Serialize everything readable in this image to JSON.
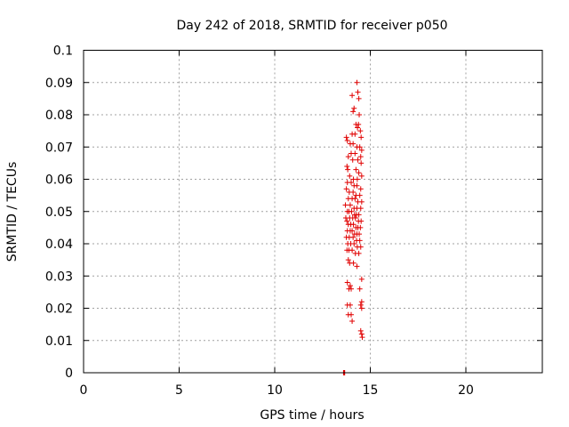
{
  "chart_data": {
    "type": "scatter",
    "title": "Day 242 of 2018, SRMTID for receiver p050",
    "xlabel": "GPS time / hours",
    "ylabel": "SRMTID / TECUs",
    "xlim": [
      0,
      24
    ],
    "ylim": [
      0,
      0.1
    ],
    "xticks": [
      0,
      5,
      10,
      15,
      20
    ],
    "xtick_labels": [
      "0",
      "5",
      "10",
      "15",
      "20"
    ],
    "yticks": [
      0,
      0.01,
      0.02,
      0.03,
      0.04,
      0.05,
      0.06,
      0.07,
      0.08,
      0.09,
      0.1
    ],
    "ytick_labels": [
      "0",
      "0.01",
      "0.02",
      "0.03",
      "0.04",
      "0.05",
      "0.06",
      "0.07",
      "0.08",
      "0.09",
      "0.1"
    ],
    "grid": true,
    "marker": "+",
    "color": "#e00000",
    "series": [
      {
        "name": "SRMTID",
        "x": [
          13.6,
          13.62,
          13.64,
          13.66,
          14.3,
          14.35,
          14.4,
          14.05,
          14.15,
          14.1,
          14.42,
          14.38,
          14.25,
          14.33,
          14.48,
          14.05,
          14.2,
          14.52,
          13.75,
          13.8,
          13.95,
          14.1,
          14.3,
          14.45,
          14.55,
          14.0,
          14.2,
          14.5,
          13.85,
          14.08,
          14.35,
          14.52,
          13.78,
          13.82,
          14.25,
          14.4,
          14.55,
          13.92,
          14.12,
          14.32,
          13.8,
          14.0,
          14.15,
          14.3,
          14.5,
          13.75,
          13.9,
          14.1,
          14.25,
          14.45,
          13.85,
          14.05,
          14.2,
          14.35,
          14.55,
          13.7,
          13.95,
          14.15,
          14.3,
          14.5,
          13.8,
          13.88,
          14.02,
          14.18,
          14.28,
          14.4,
          13.72,
          13.92,
          14.08,
          14.22,
          14.38,
          14.52,
          13.78,
          13.85,
          13.98,
          14.12,
          14.25,
          14.35,
          14.48,
          13.8,
          13.95,
          14.05,
          14.18,
          14.3,
          14.42,
          13.75,
          13.9,
          14.1,
          14.28,
          14.45,
          13.82,
          13.98,
          14.15,
          14.32,
          14.5,
          13.78,
          13.88,
          14.05,
          14.22,
          14.4,
          13.85,
          13.92,
          14.12,
          14.3,
          14.55,
          13.8,
          13.95,
          14.45,
          13.88,
          14.55,
          13.8,
          13.95,
          14.0,
          13.85,
          14.5,
          14.05,
          14.55,
          14.0,
          14.5,
          14.58,
          14.55
        ],
        "y": [
          0.0,
          0.0,
          0.0,
          0.0,
          0.09,
          0.087,
          0.085,
          0.086,
          0.082,
          0.081,
          0.08,
          0.077,
          0.077,
          0.076,
          0.075,
          0.074,
          0.074,
          0.073,
          0.073,
          0.072,
          0.071,
          0.071,
          0.07,
          0.07,
          0.069,
          0.068,
          0.068,
          0.067,
          0.067,
          0.066,
          0.066,
          0.065,
          0.064,
          0.063,
          0.063,
          0.062,
          0.061,
          0.061,
          0.06,
          0.06,
          0.059,
          0.059,
          0.058,
          0.058,
          0.057,
          0.057,
          0.056,
          0.056,
          0.055,
          0.055,
          0.054,
          0.054,
          0.054,
          0.053,
          0.053,
          0.052,
          0.052,
          0.051,
          0.051,
          0.051,
          0.05,
          0.05,
          0.05,
          0.049,
          0.049,
          0.049,
          0.048,
          0.048,
          0.048,
          0.048,
          0.047,
          0.047,
          0.047,
          0.046,
          0.046,
          0.046,
          0.045,
          0.045,
          0.045,
          0.044,
          0.044,
          0.044,
          0.043,
          0.043,
          0.043,
          0.042,
          0.042,
          0.042,
          0.041,
          0.041,
          0.04,
          0.04,
          0.04,
          0.039,
          0.039,
          0.038,
          0.038,
          0.038,
          0.037,
          0.037,
          0.035,
          0.034,
          0.034,
          0.033,
          0.029,
          0.028,
          0.027,
          0.026,
          0.026,
          0.022,
          0.021,
          0.021,
          0.018,
          0.018,
          0.021,
          0.016,
          0.02,
          0.026,
          0.013,
          0.011,
          0.012
        ]
      }
    ]
  }
}
